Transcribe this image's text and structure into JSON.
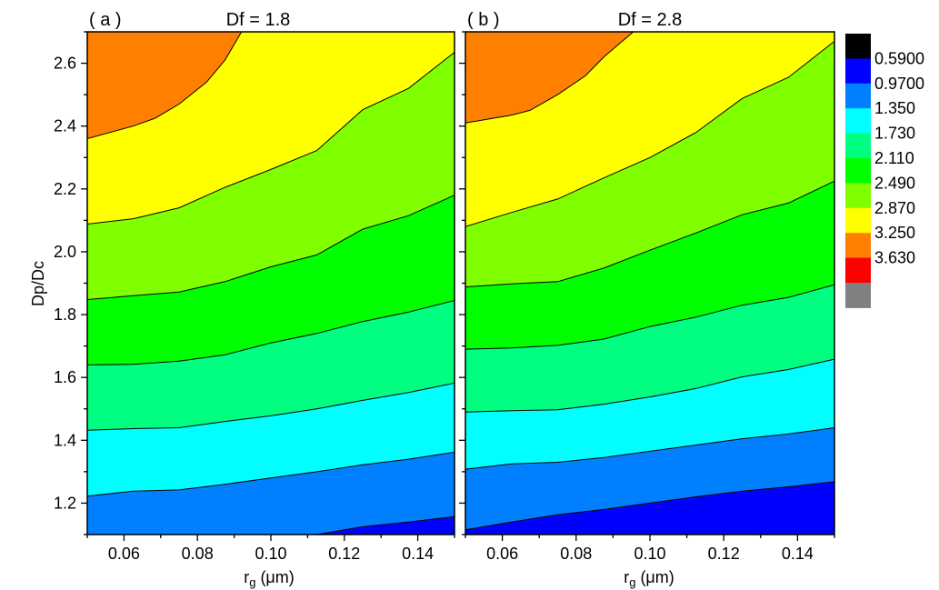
{
  "figure": {
    "ylabel": "Dp/Dc",
    "xlabel_main": "r",
    "xlabel_sub": "g",
    "xlabel_unit": " (μm)"
  },
  "chart_data": [
    {
      "type": "heatmap",
      "panel_label": "( a )",
      "title": "Df = 1.8",
      "xlim": [
        0.05,
        0.15
      ],
      "ylim": [
        1.1,
        2.7
      ],
      "xticks": [
        "0.06",
        "0.08",
        "0.10",
        "0.12",
        "0.14"
      ],
      "xtick_values": [
        0.06,
        0.08,
        0.1,
        0.12,
        0.14
      ],
      "yticks": [
        "1.2",
        "1.4",
        "1.6",
        "1.8",
        "2.0",
        "2.2",
        "2.4",
        "2.6"
      ],
      "ytick_values": [
        1.2,
        1.4,
        1.6,
        1.8,
        2.0,
        2.2,
        2.4,
        2.6
      ],
      "contours": [
        {
          "level": 0.59,
          "points": [
            [
              0.1125,
              1.1
            ],
            [
              0.125,
              1.125
            ],
            [
              0.1375,
              1.14
            ],
            [
              0.15,
              1.157
            ]
          ]
        },
        {
          "level": 0.97,
          "points": [
            [
              0.05,
              1.222
            ],
            [
              0.0625,
              1.238
            ],
            [
              0.075,
              1.242
            ],
            [
              0.0875,
              1.26
            ],
            [
              0.1,
              1.28
            ],
            [
              0.1125,
              1.3
            ],
            [
              0.125,
              1.322
            ],
            [
              0.1375,
              1.34
            ],
            [
              0.15,
              1.362
            ]
          ]
        },
        {
          "level": 1.35,
          "points": [
            [
              0.05,
              1.432
            ],
            [
              0.0625,
              1.437
            ],
            [
              0.075,
              1.44
            ],
            [
              0.0875,
              1.46
            ],
            [
              0.1,
              1.478
            ],
            [
              0.1125,
              1.5
            ],
            [
              0.125,
              1.527
            ],
            [
              0.1375,
              1.552
            ],
            [
              0.15,
              1.582
            ]
          ]
        },
        {
          "level": 1.73,
          "points": [
            [
              0.05,
              1.64
            ],
            [
              0.0625,
              1.642
            ],
            [
              0.075,
              1.652
            ],
            [
              0.0875,
              1.672
            ],
            [
              0.1,
              1.71
            ],
            [
              0.1125,
              1.74
            ],
            [
              0.125,
              1.778
            ],
            [
              0.1375,
              1.808
            ],
            [
              0.15,
              1.845
            ]
          ]
        },
        {
          "level": 2.11,
          "points": [
            [
              0.05,
              1.848
            ],
            [
              0.0625,
              1.86
            ],
            [
              0.075,
              1.872
            ],
            [
              0.0875,
              1.905
            ],
            [
              0.1,
              1.952
            ],
            [
              0.1125,
              1.99
            ],
            [
              0.125,
              2.072
            ],
            [
              0.1375,
              2.115
            ],
            [
              0.15,
              2.18
            ]
          ]
        },
        {
          "level": 2.49,
          "points": [
            [
              0.05,
              2.088
            ],
            [
              0.0625,
              2.105
            ],
            [
              0.075,
              2.14
            ],
            [
              0.0875,
              2.205
            ],
            [
              0.1,
              2.262
            ],
            [
              0.1125,
              2.322
            ],
            [
              0.125,
              2.452
            ],
            [
              0.1375,
              2.52
            ],
            [
              0.15,
              2.635
            ]
          ]
        },
        {
          "level": 2.87,
          "points": [
            [
              0.05,
              2.36
            ],
            [
              0.0625,
              2.4
            ],
            [
              0.0685,
              2.425
            ],
            [
              0.075,
              2.47
            ],
            [
              0.0825,
              2.54
            ],
            [
              0.0875,
              2.61
            ],
            [
              0.092,
              2.7
            ]
          ]
        }
      ]
    },
    {
      "type": "heatmap",
      "panel_label": "( b )",
      "title": "Df = 2.8",
      "xlim": [
        0.05,
        0.15
      ],
      "ylim": [
        1.1,
        2.7
      ],
      "xticks": [
        "0.06",
        "0.08",
        "0.10",
        "0.12",
        "0.14"
      ],
      "xtick_values": [
        0.06,
        0.08,
        0.1,
        0.12,
        0.14
      ],
      "yticks": [],
      "ytick_values": [
        1.2,
        1.4,
        1.6,
        1.8,
        2.0,
        2.2,
        2.4,
        2.6
      ],
      "contours": [
        {
          "level": 0.59,
          "points": [
            [
              0.05,
              1.115
            ],
            [
              0.0625,
              1.14
            ],
            [
              0.075,
              1.163
            ],
            [
              0.0875,
              1.18
            ],
            [
              0.1,
              1.2
            ],
            [
              0.1125,
              1.22
            ],
            [
              0.125,
              1.238
            ],
            [
              0.1375,
              1.252
            ],
            [
              0.15,
              1.268
            ]
          ]
        },
        {
          "level": 0.97,
          "points": [
            [
              0.05,
              1.308
            ],
            [
              0.0625,
              1.325
            ],
            [
              0.075,
              1.33
            ],
            [
              0.0875,
              1.345
            ],
            [
              0.1,
              1.365
            ],
            [
              0.1125,
              1.385
            ],
            [
              0.125,
              1.405
            ],
            [
              0.1375,
              1.42
            ],
            [
              0.15,
              1.44
            ]
          ]
        },
        {
          "level": 1.35,
          "points": [
            [
              0.05,
              1.49
            ],
            [
              0.0625,
              1.494
            ],
            [
              0.075,
              1.497
            ],
            [
              0.0875,
              1.515
            ],
            [
              0.1,
              1.538
            ],
            [
              0.1125,
              1.565
            ],
            [
              0.125,
              1.602
            ],
            [
              0.1375,
              1.625
            ],
            [
              0.15,
              1.658
            ]
          ]
        },
        {
          "level": 1.73,
          "points": [
            [
              0.05,
              1.69
            ],
            [
              0.0625,
              1.694
            ],
            [
              0.075,
              1.702
            ],
            [
              0.0875,
              1.722
            ],
            [
              0.1,
              1.762
            ],
            [
              0.1125,
              1.792
            ],
            [
              0.125,
              1.83
            ],
            [
              0.1375,
              1.855
            ],
            [
              0.15,
              1.895
            ]
          ]
        },
        {
          "level": 2.11,
          "points": [
            [
              0.05,
              1.888
            ],
            [
              0.0625,
              1.898
            ],
            [
              0.075,
              1.905
            ],
            [
              0.0875,
              1.948
            ],
            [
              0.1,
              2.005
            ],
            [
              0.1125,
              2.06
            ],
            [
              0.125,
              2.118
            ],
            [
              0.1375,
              2.155
            ],
            [
              0.15,
              2.225
            ]
          ]
        },
        {
          "level": 2.49,
          "points": [
            [
              0.05,
              2.08
            ],
            [
              0.0625,
              2.125
            ],
            [
              0.075,
              2.168
            ],
            [
              0.0875,
              2.235
            ],
            [
              0.1,
              2.3
            ],
            [
              0.1125,
              2.38
            ],
            [
              0.125,
              2.488
            ],
            [
              0.1375,
              2.555
            ],
            [
              0.15,
              2.67
            ]
          ]
        },
        {
          "level": 2.87,
          "points": [
            [
              0.05,
              2.41
            ],
            [
              0.0625,
              2.435
            ],
            [
              0.0675,
              2.45
            ],
            [
              0.075,
              2.5
            ],
            [
              0.0825,
              2.56
            ],
            [
              0.0875,
              2.62
            ],
            [
              0.0955,
              2.7
            ]
          ]
        }
      ]
    }
  ],
  "colorscale": {
    "colors": [
      "#000000",
      "#0000ff",
      "#0080ff",
      "#00ffff",
      "#00ff80",
      "#00ff00",
      "#80ff00",
      "#ffff00",
      "#ff8000",
      "#ff0000",
      "#808080"
    ],
    "labels": [
      "0.5900",
      "0.9700",
      "1.350",
      "1.730",
      "2.110",
      "2.490",
      "2.870",
      "3.250",
      "3.630"
    ]
  }
}
